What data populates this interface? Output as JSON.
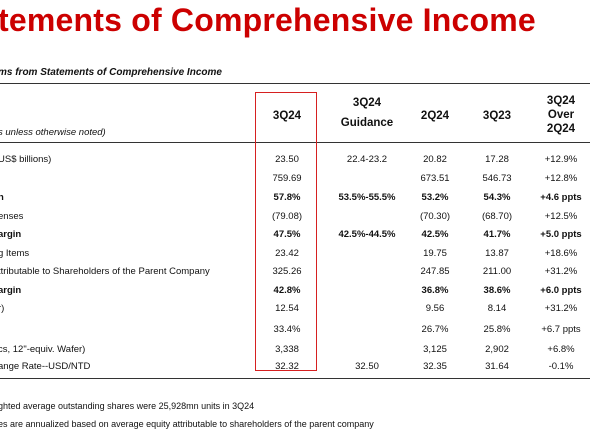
{
  "title": "tements of Comprehensive Income",
  "subtitle": "ms from Statements of Comprehensive Income",
  "unit_note": "s unless otherwise noted)",
  "headers": {
    "c1": "3Q24",
    "c2_line1": "3Q24",
    "c2_line2": "Guidance",
    "c3": "2Q24",
    "c4": "3Q23",
    "c5_line1": "3Q24",
    "c5_line2": "Over",
    "c5_line3": "2Q24"
  },
  "rows": [
    {
      "label": "US$ billions)",
      "c1": "23.50",
      "c2": "22.4-23.2",
      "c3": "20.82",
      "c4": "17.28",
      "c5": "+12.9%"
    },
    {
      "label": "",
      "c1": "759.69",
      "c2": "",
      "c3": "673.51",
      "c4": "546.73",
      "c5": "+12.8%"
    },
    {
      "label": "n",
      "c1": "57.8%",
      "c2": "53.5%-55.5%",
      "c3": "53.2%",
      "c4": "54.3%",
      "c5": "+4.6 ppts"
    },
    {
      "label": "enses",
      "c1": "(79.08)",
      "c2": "",
      "c3": "(70.30)",
      "c4": "(68.70)",
      "c5": "+12.5%"
    },
    {
      "label": "argin",
      "c1": "47.5%",
      "c2": "42.5%-44.5%",
      "c3": "42.5%",
      "c4": "41.7%",
      "c5": "+5.0 ppts"
    },
    {
      "label": "g Items",
      "c1": "23.42",
      "c2": "",
      "c3": "19.75",
      "c4": "13.87",
      "c5": "+18.6%"
    },
    {
      "label": "ttributable to Shareholders of the Parent Company",
      "c1": "325.26",
      "c2": "",
      "c3": "247.85",
      "c4": "211.00",
      "c5": "+31.2%"
    },
    {
      "label": "argin",
      "c1": "42.8%",
      "c2": "",
      "c3": "36.8%",
      "c4": "38.6%",
      "c5": "+6.0 ppts"
    },
    {
      "label": "r)",
      "c1": "12.54",
      "c2": "",
      "c3": "9.56",
      "c4": "8.14",
      "c5": "+31.2%"
    },
    {
      "label": "",
      "c1": "33.4%",
      "c2": "",
      "c3": "26.7%",
      "c4": "25.8%",
      "c5": "+6.7 ppts"
    },
    {
      "label": "cs, 12\"-equiv. Wafer)",
      "c1": "3,338",
      "c2": "",
      "c3": "3,125",
      "c4": "2,902",
      "c5": "+6.8%"
    },
    {
      "label": "ange Rate--USD/NTD",
      "c1": "32.32",
      "c2": "32.50",
      "c3": "32.35",
      "c4": "31.64",
      "c5": "-0.1%"
    }
  ],
  "notes": [
    "ghted average outstanding shares were 25,928mn units in 3Q24",
    "es are annualized based on average equity attributable to shareholders of the parent company"
  ]
}
